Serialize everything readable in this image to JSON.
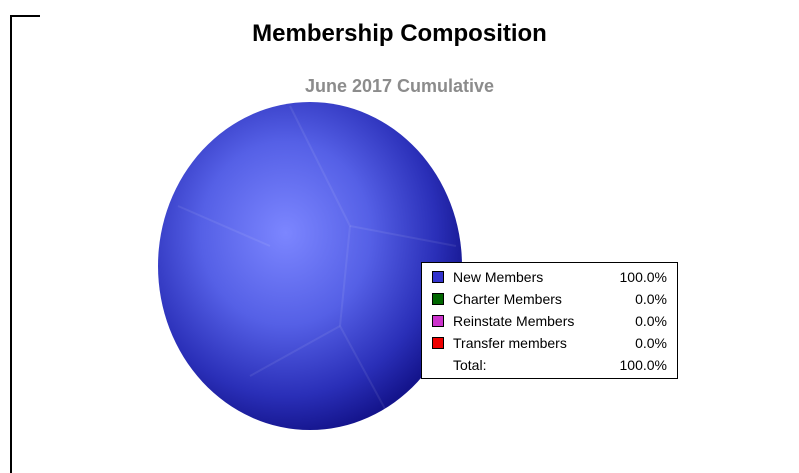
{
  "chart_data": {
    "type": "pie",
    "title": "Membership Composition",
    "subtitle": "June 2017 Cumulative",
    "slices": [
      {
        "label": "New Members",
        "value": 100.0,
        "display": "100.0%",
        "color": "#3333cc"
      },
      {
        "label": "Charter Members",
        "value": 0.0,
        "display": "0.0%",
        "color": "#006600"
      },
      {
        "label": "Reinstate Members",
        "value": 0.0,
        "display": "0.0%",
        "color": "#cc33cc"
      },
      {
        "label": "Transfer members",
        "value": 0.0,
        "display": "0.0%",
        "color": "#ee0000"
      }
    ],
    "total_label": "Total:",
    "total_value": "100.0%",
    "legend_position": "right"
  }
}
